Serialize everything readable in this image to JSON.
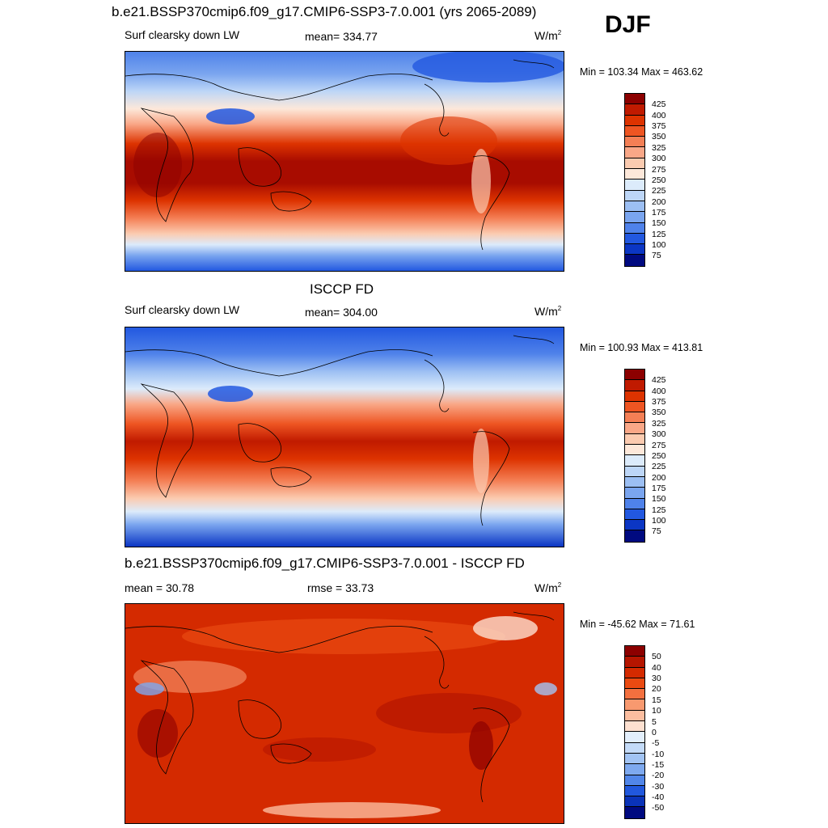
{
  "header": {
    "title": "b.e21.BSSP370cmip6.f09_g17.CMIP6-SSP3-7.0.001 (yrs 2065-2089)",
    "season": "DJF"
  },
  "panels": [
    {
      "variable": "Surf clearsky down LW",
      "stat": "mean= 334.77",
      "units": "W/m",
      "units_exp": "2",
      "minmax": "Min = 103.34 Max = 463.62",
      "colorbar_ticks": [
        "425",
        "400",
        "375",
        "350",
        "325",
        "300",
        "275",
        "250",
        "225",
        "200",
        "175",
        "150",
        "125",
        "100",
        "75"
      ]
    },
    {
      "title": "ISCCP FD",
      "variable": "Surf clearsky down LW",
      "stat": "mean= 304.00",
      "units": "W/m",
      "units_exp": "2",
      "minmax": "Min = 100.93 Max = 413.81",
      "colorbar_ticks": [
        "425",
        "400",
        "375",
        "350",
        "325",
        "300",
        "275",
        "250",
        "225",
        "200",
        "175",
        "150",
        "125",
        "100",
        "75"
      ]
    },
    {
      "title": "b.e21.BSSP370cmip6.f09_g17.CMIP6-SSP3-7.0.001 - ISCCP FD",
      "stat_left": "mean =  30.78",
      "stat_mid": "rmse =  33.73",
      "units": "W/m",
      "units_exp": "2",
      "minmax": "Min = -45.62 Max =  71.61",
      "colorbar_ticks": [
        "50",
        "40",
        "30",
        "20",
        "15",
        "10",
        "5",
        "0",
        "-5",
        "-10",
        "-15",
        "-20",
        "-30",
        "-40",
        "-50"
      ]
    }
  ],
  "colors": {
    "abs_scale": [
      "#8c0000",
      "#c01a00",
      "#dd3300",
      "#ee5522",
      "#f47f55",
      "#f9a787",
      "#fbcbb0",
      "#fde8da",
      "#dcebfb",
      "#bdd6f7",
      "#9cbff3",
      "#7aa5ef",
      "#4f82ea",
      "#2258e0",
      "#0b36c4",
      "#000a80"
    ],
    "diff_scale": [
      "#8c0000",
      "#b51500",
      "#d42a00",
      "#ea4a11",
      "#f3703f",
      "#f8996f",
      "#fbbd9f",
      "#fde0d0",
      "#e3effc",
      "#c4dbf8",
      "#a2c4f4",
      "#7ea9ef",
      "#5186e9",
      "#2158dd",
      "#0a33b8",
      "#000a80"
    ]
  }
}
